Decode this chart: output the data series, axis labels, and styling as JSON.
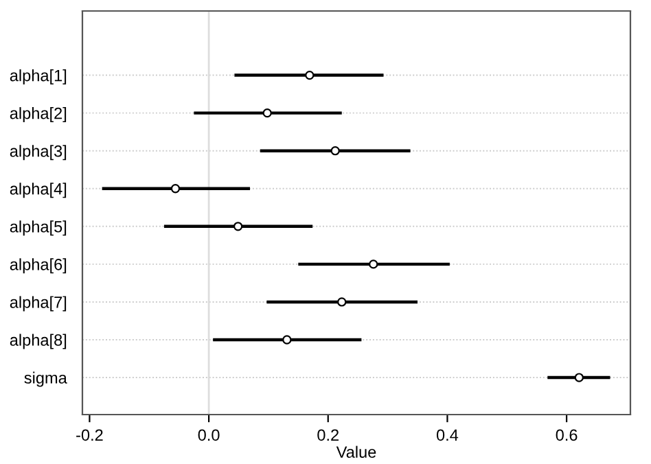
{
  "chart_data": {
    "type": "scatter",
    "orientation": "horizontal",
    "xlabel": "Value",
    "categories": [
      "alpha[1]",
      "alpha[2]",
      "alpha[3]",
      "alpha[4]",
      "alpha[5]",
      "alpha[6]",
      "alpha[7]",
      "alpha[8]",
      "sigma"
    ],
    "series": [
      {
        "color": "#000000",
        "values": [
          0.169,
          0.098,
          0.212,
          -0.056,
          0.049,
          0.276,
          0.223,
          0.131,
          0.621
        ],
        "errors": [
          [
            0.043,
            0.293
          ],
          [
            -0.025,
            0.223
          ],
          [
            0.086,
            0.338
          ],
          [
            -0.179,
            0.069
          ],
          [
            -0.075,
            0.174
          ],
          [
            0.15,
            0.404
          ],
          [
            0.097,
            0.35
          ],
          [
            0.007,
            0.256
          ],
          [
            0.568,
            0.673
          ]
        ]
      }
    ],
    "xlim": [
      -0.212,
      0.707
    ],
    "xticks": [
      {
        "value": -0.2,
        "label": "-0.2"
      },
      {
        "value": 0,
        "label": "0.0"
      },
      0.2,
      0.4,
      0.6
    ],
    "ref_lines": [
      {
        "axis": "x",
        "value": 0,
        "color": "#dddddd"
      }
    ],
    "grid": "y",
    "marker": "circle",
    "legend": false
  }
}
